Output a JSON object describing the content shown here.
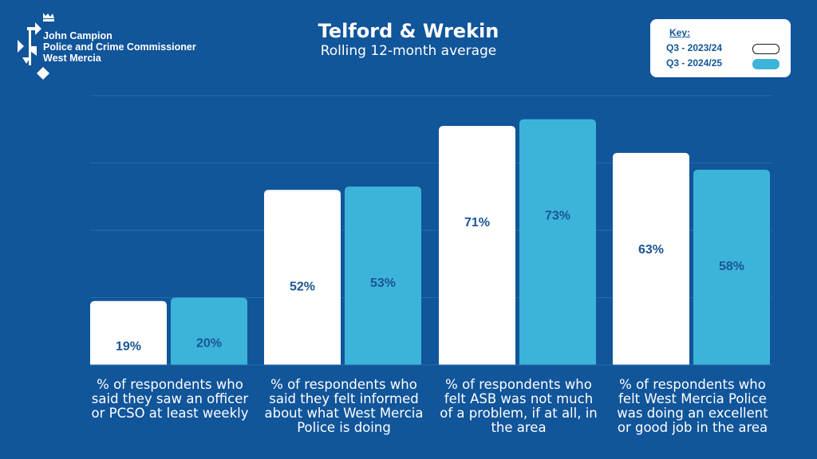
{
  "logo": {
    "line1": "John Campion",
    "line2": "Police and Crime Commissioner",
    "line3": "West Mercia"
  },
  "key": {
    "title": "Key:",
    "items": [
      {
        "label": "Q3 - 2023/24",
        "color": "#ffffff"
      },
      {
        "label": "Q3 - 2024/25",
        "color": "#3cb4d9"
      }
    ]
  },
  "chart_data": {
    "type": "bar",
    "title": "Telford & Wrekin",
    "subtitle": "Rolling 12-month average",
    "categories": [
      "% of respondents who said they saw an officer or PCSO at least weekly",
      "% of respondents who said they felt informed about what West Mercia Police is doing",
      "% of respondents who felt ASB was not much of a problem, if at all, in the area",
      "% of respondents who felt West Mercia Police was doing an excellent or good job in the area"
    ],
    "series": [
      {
        "name": "Q3 - 2023/24",
        "values": [
          19,
          52,
          71,
          63
        ],
        "labels": [
          "19%",
          "52%",
          "71%",
          "63%"
        ],
        "color": "#ffffff"
      },
      {
        "name": "Q3 - 2024/25",
        "values": [
          20,
          53,
          73,
          58
        ],
        "labels": [
          "20%",
          "53%",
          "73%",
          "58%"
        ],
        "color": "#3cb4d9"
      }
    ],
    "ylim": [
      0,
      80
    ],
    "grid": true,
    "legend": "top-right"
  }
}
